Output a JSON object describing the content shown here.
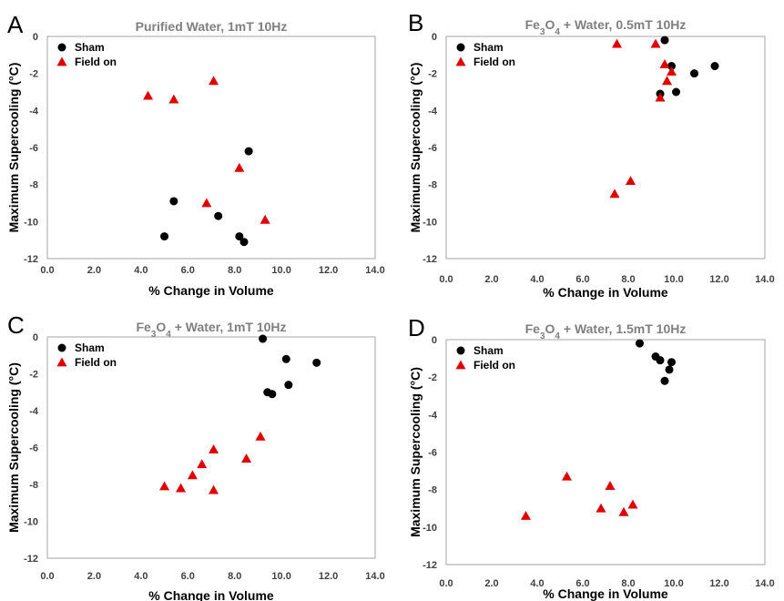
{
  "chart_data": [
    {
      "type": "scatter",
      "panel": "A",
      "title": "Purified Water,  1mT 10Hz",
      "xlabel": "% Change in Volume",
      "ylabel": "Maximum Supercooling (°C)",
      "xlim": [
        0,
        14
      ],
      "ylim": [
        -12,
        0
      ],
      "xticks": [
        "0.0",
        "2.0",
        "4.0",
        "6.0",
        "8.0",
        "10.0",
        "12.0",
        "14.0"
      ],
      "yticks": [
        "0",
        "-2",
        "-4",
        "-6",
        "-8",
        "-10",
        "-12"
      ],
      "legend_position": "top-left",
      "series": [
        {
          "name": "Sham",
          "marker": "circle",
          "color": "#000000",
          "points": [
            [
              5.0,
              -10.8
            ],
            [
              5.4,
              -8.9
            ],
            [
              7.3,
              -9.7
            ],
            [
              8.2,
              -10.8
            ],
            [
              8.4,
              -11.1
            ],
            [
              8.6,
              -6.2
            ]
          ]
        },
        {
          "name": "Field on",
          "marker": "triangle",
          "color": "#e00000",
          "points": [
            [
              4.3,
              -3.2
            ],
            [
              5.4,
              -3.4
            ],
            [
              6.8,
              -9.0
            ],
            [
              7.1,
              -2.4
            ],
            [
              8.2,
              -7.1
            ],
            [
              9.3,
              -9.9
            ]
          ]
        }
      ]
    },
    {
      "type": "scatter",
      "panel": "B",
      "title_parts": [
        "Fe",
        "3",
        "O",
        "4",
        " + Water,  0.5mT 10Hz"
      ],
      "xlabel": "% Change in Volume",
      "ylabel": "Maximum Supercooling (°C)",
      "xlim": [
        0,
        14
      ],
      "ylim": [
        -12,
        0
      ],
      "xticks": [
        "0.0",
        "2.0",
        "4.0",
        "6.0",
        "8.0",
        "10.0",
        "12.0",
        "14.0"
      ],
      "yticks": [
        "0",
        "-2",
        "-4",
        "-6",
        "-8",
        "-10",
        "-12"
      ],
      "legend_position": "top-left",
      "series": [
        {
          "name": "Sham",
          "marker": "circle",
          "color": "#000000",
          "points": [
            [
              9.4,
              -3.1
            ],
            [
              9.6,
              -0.2
            ],
            [
              9.9,
              -1.6
            ],
            [
              10.1,
              -3.0
            ],
            [
              10.9,
              -2.0
            ],
            [
              11.8,
              -1.6
            ]
          ]
        },
        {
          "name": "Field on",
          "marker": "triangle",
          "color": "#e00000",
          "points": [
            [
              7.4,
              -8.5
            ],
            [
              7.5,
              -0.4
            ],
            [
              8.1,
              -7.8
            ],
            [
              9.2,
              -0.4
            ],
            [
              9.4,
              -3.3
            ],
            [
              9.6,
              -1.5
            ],
            [
              9.7,
              -2.4
            ],
            [
              9.9,
              -1.9
            ]
          ]
        }
      ]
    },
    {
      "type": "scatter",
      "panel": "C",
      "title_parts": [
        "Fe",
        "3",
        "O",
        "4",
        " + Water,  1mT 10Hz"
      ],
      "xlabel": "% Change in Volume",
      "ylabel": "Maximum Supercooling (°C)",
      "xlim": [
        0,
        14
      ],
      "ylim": [
        -12,
        0
      ],
      "xticks": [
        "0.0",
        "2.0",
        "4.0",
        "6.0",
        "8.0",
        "10.0",
        "12.0",
        "14.0"
      ],
      "yticks": [
        "0",
        "-2",
        "-4",
        "-6",
        "-8",
        "-10",
        "-12"
      ],
      "legend_position": "top-left",
      "series": [
        {
          "name": "Sham",
          "marker": "circle",
          "color": "#000000",
          "points": [
            [
              9.2,
              -0.1
            ],
            [
              9.4,
              -3.0
            ],
            [
              9.6,
              -3.1
            ],
            [
              10.2,
              -1.2
            ],
            [
              10.3,
              -2.6
            ],
            [
              11.5,
              -1.4
            ]
          ]
        },
        {
          "name": "Field on",
          "marker": "triangle",
          "color": "#e00000",
          "points": [
            [
              5.0,
              -8.1
            ],
            [
              5.7,
              -8.2
            ],
            [
              6.2,
              -7.5
            ],
            [
              6.6,
              -6.9
            ],
            [
              7.1,
              -6.1
            ],
            [
              7.1,
              -8.3
            ],
            [
              8.5,
              -6.6
            ],
            [
              9.1,
              -5.4
            ]
          ]
        }
      ]
    },
    {
      "type": "scatter",
      "panel": "D",
      "title_parts": [
        "Fe",
        "3",
        "O",
        "4",
        " + Water,  1.5mT 10Hz"
      ],
      "xlabel": "% Change in Volume",
      "ylabel": "Maximum Supercooling (°C)",
      "xlim": [
        0,
        14
      ],
      "ylim": [
        -12,
        0
      ],
      "xticks": [
        "0.0",
        "2.0",
        "4.0",
        "6.0",
        "8.0",
        "10.0",
        "12.0",
        "14.0"
      ],
      "yticks": [
        "0",
        "-2",
        "-4",
        "-6",
        "-8",
        "-10",
        "-12"
      ],
      "legend_position": "top-left",
      "series": [
        {
          "name": "Sham",
          "marker": "circle",
          "color": "#000000",
          "points": [
            [
              8.5,
              -0.2
            ],
            [
              9.2,
              -0.9
            ],
            [
              9.4,
              -1.1
            ],
            [
              9.6,
              -2.2
            ],
            [
              9.8,
              -1.6
            ],
            [
              9.9,
              -1.2
            ]
          ]
        },
        {
          "name": "Field on",
          "marker": "triangle",
          "color": "#e00000",
          "points": [
            [
              3.5,
              -9.4
            ],
            [
              5.3,
              -7.3
            ],
            [
              6.8,
              -9.0
            ],
            [
              7.2,
              -7.8
            ],
            [
              7.8,
              -9.2
            ],
            [
              8.2,
              -8.8
            ]
          ]
        }
      ]
    }
  ]
}
